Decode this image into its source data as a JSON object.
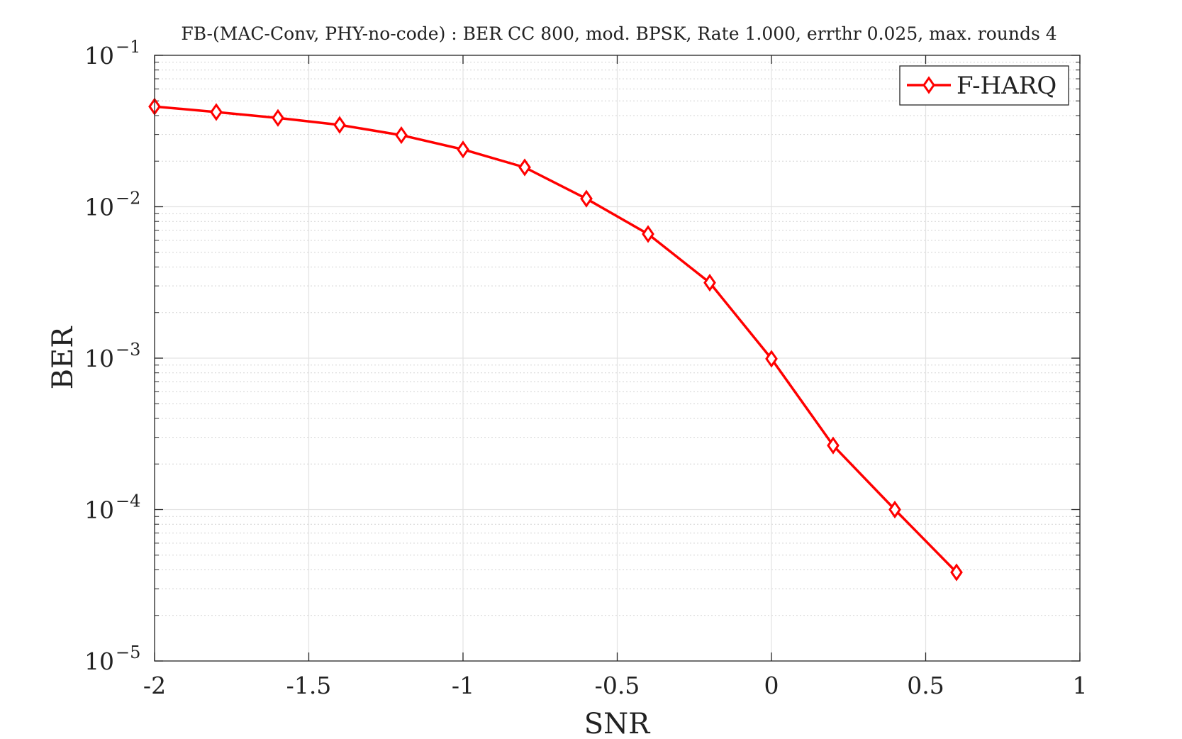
{
  "chart_data": {
    "type": "line",
    "title": "FB-(MAC-Conv, PHY-no-code) : BER CC 800, mod. BPSK, Rate 1.000, errthr 0.025, max. rounds 4",
    "xlabel": "SNR",
    "ylabel": "BER",
    "xlim": [
      -2,
      1
    ],
    "ylim": [
      1e-05,
      0.1
    ],
    "yscale": "log",
    "grid": true,
    "legend_position": "top-right",
    "x_ticks": [
      {
        "value": -2,
        "label": "-2"
      },
      {
        "value": -1.5,
        "label": "-1.5"
      },
      {
        "value": -1,
        "label": "-1"
      },
      {
        "value": -0.5,
        "label": "-0.5"
      },
      {
        "value": 0,
        "label": "0"
      },
      {
        "value": 0.5,
        "label": "0.5"
      },
      {
        "value": 1,
        "label": "1"
      }
    ],
    "y_ticks": [
      {
        "value": 1e-05,
        "base": "10",
        "exponent": "−5"
      },
      {
        "value": 0.0001,
        "base": "10",
        "exponent": "−4"
      },
      {
        "value": 0.001,
        "base": "10",
        "exponent": "−3"
      },
      {
        "value": 0.01,
        "base": "10",
        "exponent": "−2"
      },
      {
        "value": 0.1,
        "base": "10",
        "exponent": "−1"
      }
    ],
    "series": [
      {
        "name": "F-HARQ",
        "color": "#ff0000",
        "marker": "diamond",
        "x": [
          -2,
          -1.8,
          -1.6,
          -1.4,
          -1.2,
          -1,
          -0.8,
          -0.6,
          -0.4,
          -0.2,
          0,
          0.2,
          0.4,
          0.6
        ],
        "y": [
          0.0459,
          0.0422,
          0.0386,
          0.0347,
          0.0297,
          0.0239,
          0.0182,
          0.0113,
          0.0066,
          0.00315,
          0.00099,
          0.000265,
          0.0001,
          3.85e-05
        ]
      }
    ]
  }
}
